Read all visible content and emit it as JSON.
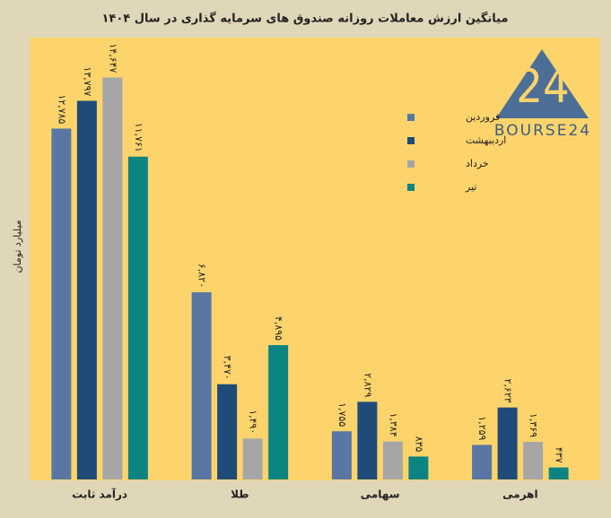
{
  "chart_data": {
    "type": "bar",
    "title": "میانگین ارزش معاملات روزانه صندوق های سرمایه گذاری در سال ۱۴۰۴",
    "ylabel": "میلیارد تومان",
    "logo_mark": "24",
    "logo_text": "BOURSE24",
    "categories": [
      "درآمد ثابت",
      "طلا",
      "سهامی",
      "اهرمی"
    ],
    "ylim": [
      0,
      16000
    ],
    "legend": "upper right",
    "series": [
      {
        "name": "فروردین",
        "color": "#5a77a3",
        "values": [
          12785,
          6820,
          1755,
          1259
        ],
        "value_labels": [
          "۱۲,۷۸۵",
          "۶,۸۲۰",
          "۱,۷۵۵",
          "۱,۲۵۹"
        ]
      },
      {
        "name": "اردیبهشت",
        "color": "#1f4b78",
        "values": [
          13797,
          3470,
          2829,
          2623
        ],
        "value_labels": [
          "۱۳,۷۹۷",
          "۳,۴۷۰",
          "۲,۸۲۹",
          "۲,۶۲۳"
        ]
      },
      {
        "name": "خرداد",
        "color": "#a6a6a6",
        "values": [
          14647,
          1490,
          1384,
          1369
        ],
        "value_labels": [
          "۱۴,۶۴۷",
          "۱,۴۹۰",
          "۱,۳۸۴",
          "۱,۳۶۹"
        ]
      },
      {
        "name": "تیر",
        "color": "#0b8482",
        "values": [
          11761,
          4895,
          835,
          437
        ],
        "value_labels": [
          "۱۱,۷۶۱",
          "۴,۸۹۵",
          "۸۳۵",
          "۴۳۷"
        ]
      }
    ]
  }
}
